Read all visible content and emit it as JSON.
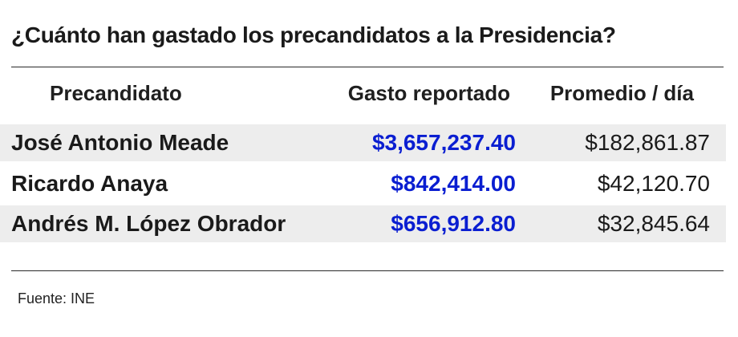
{
  "title": "¿Cuánto han gastado los precandidatos a la Presidencia?",
  "columns": {
    "candidate": "Precandidato",
    "spend": "Gasto reportado",
    "average": "Promedio / día"
  },
  "rows": [
    {
      "name": "José Antonio Meade",
      "spend": "$3,657,237.40",
      "average": "$182,861.87"
    },
    {
      "name": "Ricardo Anaya",
      "spend": "$842,414.00",
      "average": "$42,120.70"
    },
    {
      "name": "Andrés M. López Obrador",
      "spend": "$656,912.80",
      "average": "$32,845.64"
    }
  ],
  "source": "Fuente: INE",
  "colors": {
    "spend_text": "#0a1ed1",
    "row_shade": "#ededed"
  },
  "chart_data": {
    "type": "table",
    "title": "¿Cuánto han gastado los precandidatos a la Presidencia?",
    "columns": [
      "Precandidato",
      "Gasto reportado",
      "Promedio / día"
    ],
    "rows": [
      [
        "José Antonio Meade",
        3657237.4,
        182861.87
      ],
      [
        "Ricardo Anaya",
        842414.0,
        42120.7
      ],
      [
        "Andrés M. López Obrador",
        656912.8,
        32845.64
      ]
    ]
  }
}
